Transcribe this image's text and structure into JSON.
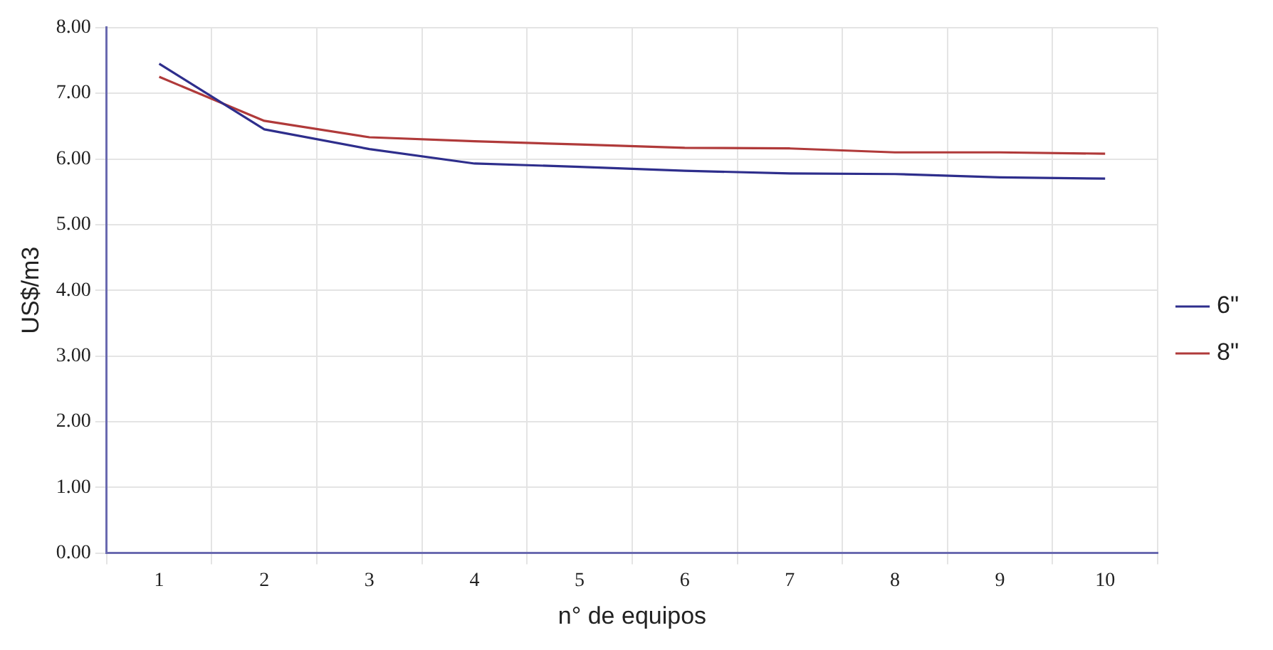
{
  "chart_data": {
    "type": "line",
    "xlabel": "n° de equipos",
    "ylabel": "US$/m3",
    "categories": [
      "1",
      "2",
      "3",
      "4",
      "5",
      "6",
      "7",
      "8",
      "9",
      "10"
    ],
    "series": [
      {
        "name": "6\"",
        "color": "#2e2e8c",
        "values": [
          7.45,
          6.45,
          6.15,
          5.93,
          5.88,
          5.82,
          5.78,
          5.77,
          5.72,
          5.7
        ]
      },
      {
        "name": "8\"",
        "color": "#b03a3a",
        "values": [
          7.25,
          6.58,
          6.33,
          6.27,
          6.22,
          6.17,
          6.16,
          6.1,
          6.1,
          6.08
        ]
      }
    ],
    "ylim": [
      0,
      8
    ],
    "yticks": [
      {
        "value": 0,
        "label": "0.00"
      },
      {
        "value": 1,
        "label": "1.00"
      },
      {
        "value": 2,
        "label": "2.00"
      },
      {
        "value": 3,
        "label": "3.00"
      },
      {
        "value": 4,
        "label": "4.00"
      },
      {
        "value": 5,
        "label": "5.00"
      },
      {
        "value": 6,
        "label": "6.00"
      },
      {
        "value": 7,
        "label": "7.00"
      },
      {
        "value": 8,
        "label": "8.00"
      }
    ],
    "grid": true,
    "legend": "right",
    "marker": "none",
    "line_style": "solid"
  }
}
